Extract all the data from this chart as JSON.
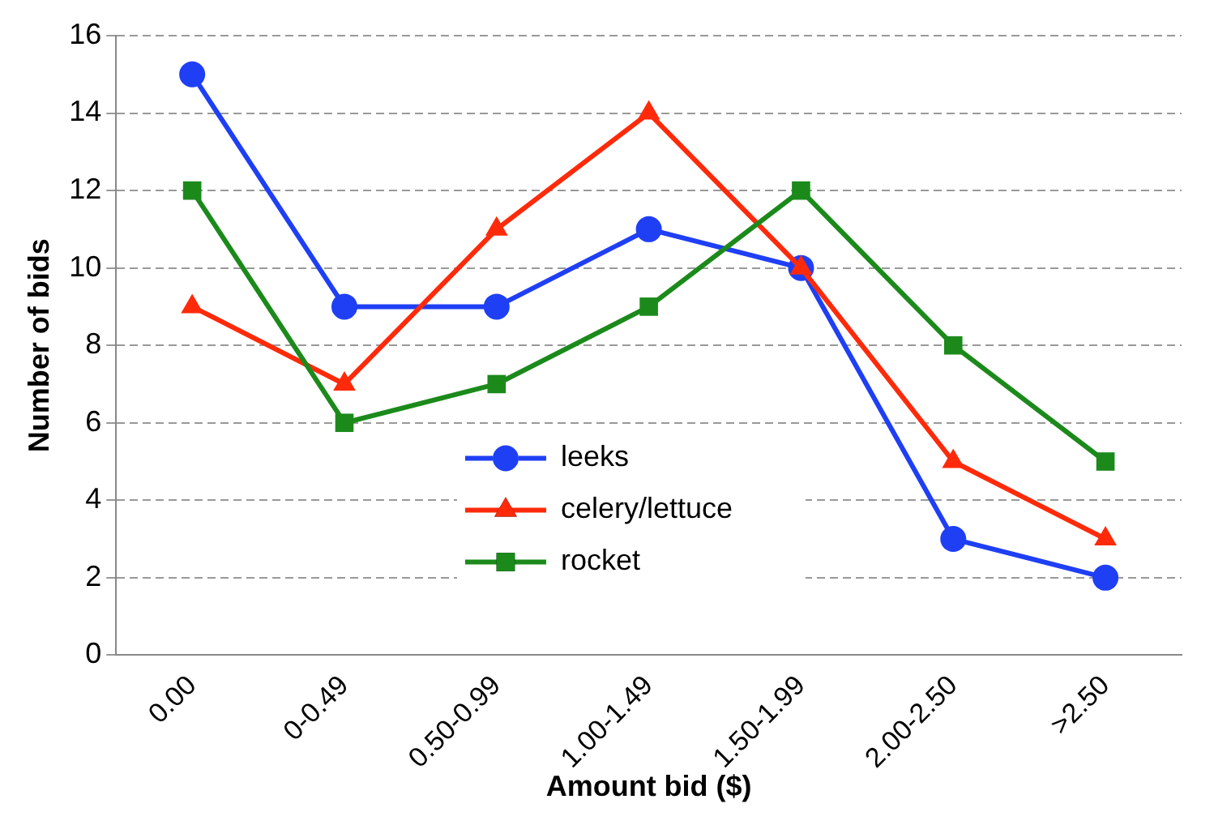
{
  "chart_data": {
    "type": "line",
    "xlabel": "Amount bid ($)",
    "ylabel": "Number of bids",
    "categories": [
      "0.00",
      "0-0.49",
      "0.50-0.99",
      "1.00-1.49",
      "1.50-1.99",
      "2.00-2.50",
      ">2.50"
    ],
    "series": [
      {
        "name": "leeks",
        "color": "#1f3ff5",
        "marker": "circle",
        "values": [
          15,
          9,
          9,
          11,
          10,
          3,
          2
        ]
      },
      {
        "name": "celery/lettuce",
        "color": "#ff2a0a",
        "marker": "triangle",
        "values": [
          9,
          7,
          11,
          14,
          10,
          5,
          3
        ]
      },
      {
        "name": "rocket",
        "color": "#1b8a1b",
        "marker": "square",
        "values": [
          12,
          6,
          7,
          9,
          12,
          8,
          5
        ]
      }
    ],
    "ylim": [
      0,
      16
    ],
    "yticks": [
      0,
      2,
      4,
      6,
      8,
      10,
      12,
      14,
      16
    ],
    "grid": "y",
    "legend": "bottom",
    "line_style": "solid"
  }
}
